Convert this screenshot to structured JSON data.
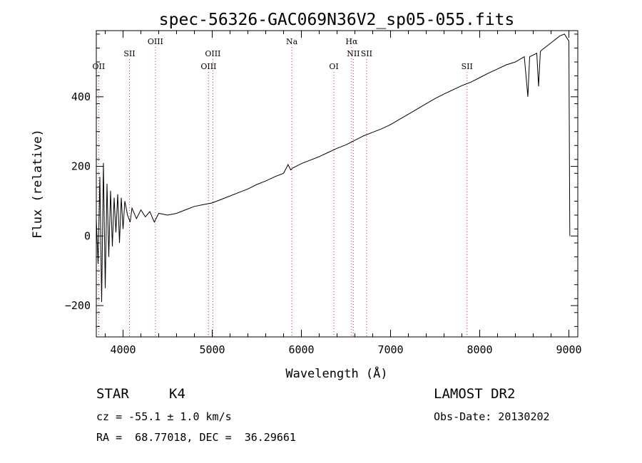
{
  "chart_data": {
    "type": "line",
    "title": "spec-56326-GAC069N36V2_sp05-055.fits",
    "xlabel": "Wavelength (Å)",
    "ylabel": "Flux (relative)",
    "xlim": [
      3700,
      9100
    ],
    "ylim": [
      -290,
      590
    ],
    "x_ticks": [
      4000,
      5000,
      6000,
      7000,
      8000,
      9000
    ],
    "y_ticks": [
      -200,
      0,
      200,
      400
    ],
    "grid": false,
    "series_color": "#000000",
    "line_color": "#cc3333",
    "spectrum": [
      [
        3700,
        50
      ],
      [
        3720,
        -80
      ],
      [
        3740,
        170
      ],
      [
        3760,
        -190
      ],
      [
        3780,
        210
      ],
      [
        3800,
        -150
      ],
      [
        3820,
        150
      ],
      [
        3840,
        -60
      ],
      [
        3860,
        130
      ],
      [
        3880,
        -30
      ],
      [
        3900,
        110
      ],
      [
        3920,
        10
      ],
      [
        3940,
        120
      ],
      [
        3960,
        -20
      ],
      [
        3980,
        110
      ],
      [
        4000,
        20
      ],
      [
        4020,
        100
      ],
      [
        4050,
        60
      ],
      [
        4080,
        40
      ],
      [
        4100,
        80
      ],
      [
        4150,
        50
      ],
      [
        4200,
        75
      ],
      [
        4250,
        55
      ],
      [
        4300,
        70
      ],
      [
        4350,
        40
      ],
      [
        4400,
        65
      ],
      [
        4500,
        60
      ],
      [
        4600,
        65
      ],
      [
        4700,
        75
      ],
      [
        4800,
        85
      ],
      [
        4900,
        90
      ],
      [
        5000,
        95
      ],
      [
        5100,
        105
      ],
      [
        5200,
        115
      ],
      [
        5300,
        125
      ],
      [
        5400,
        135
      ],
      [
        5500,
        148
      ],
      [
        5600,
        158
      ],
      [
        5700,
        170
      ],
      [
        5800,
        180
      ],
      [
        5850,
        205
      ],
      [
        5880,
        190
      ],
      [
        5900,
        195
      ],
      [
        6000,
        208
      ],
      [
        6100,
        218
      ],
      [
        6200,
        228
      ],
      [
        6300,
        240
      ],
      [
        6400,
        252
      ],
      [
        6500,
        262
      ],
      [
        6600,
        275
      ],
      [
        6700,
        288
      ],
      [
        6800,
        298
      ],
      [
        6900,
        308
      ],
      [
        7000,
        320
      ],
      [
        7100,
        335
      ],
      [
        7200,
        350
      ],
      [
        7300,
        365
      ],
      [
        7400,
        380
      ],
      [
        7500,
        395
      ],
      [
        7600,
        408
      ],
      [
        7700,
        420
      ],
      [
        7800,
        432
      ],
      [
        7900,
        442
      ],
      [
        8000,
        455
      ],
      [
        8100,
        468
      ],
      [
        8200,
        480
      ],
      [
        8300,
        492
      ],
      [
        8400,
        500
      ],
      [
        8500,
        515
      ],
      [
        8540,
        400
      ],
      [
        8560,
        515
      ],
      [
        8640,
        525
      ],
      [
        8660,
        430
      ],
      [
        8680,
        530
      ],
      [
        8700,
        535
      ],
      [
        8800,
        555
      ],
      [
        8900,
        575
      ],
      [
        8950,
        580
      ],
      [
        9000,
        560
      ],
      [
        9010,
        0
      ]
    ],
    "lines": [
      {
        "name": "OII",
        "x": 3727,
        "row": 3
      },
      {
        "name": "SII",
        "x": 4072,
        "row": 2
      },
      {
        "name": "OIII",
        "x": 4363,
        "row": 1
      },
      {
        "name": "OIII",
        "x": 4959,
        "row": 3
      },
      {
        "name": "OIII",
        "x": 5007,
        "row": 2
      },
      {
        "name": "Na",
        "x": 5893,
        "row": 1
      },
      {
        "name": "OI",
        "x": 6364,
        "row": 3
      },
      {
        "name": "Hα",
        "x": 6563,
        "row": 1
      },
      {
        "name": "NII",
        "x": 6583,
        "row": 2
      },
      {
        "name": "SII",
        "x": 6731,
        "row": 2
      },
      {
        "name": "SII",
        "x": 7858,
        "row": 3
      }
    ]
  },
  "footer": {
    "object_type": "STAR",
    "subclass": "K4",
    "redshift": "cz = -55.1 ± 1.0 km/s",
    "coords": "RA =  68.77018, DEC =  36.29661",
    "survey": "LAMOST DR2",
    "obs_date": "Obs-Date: 20130202"
  }
}
